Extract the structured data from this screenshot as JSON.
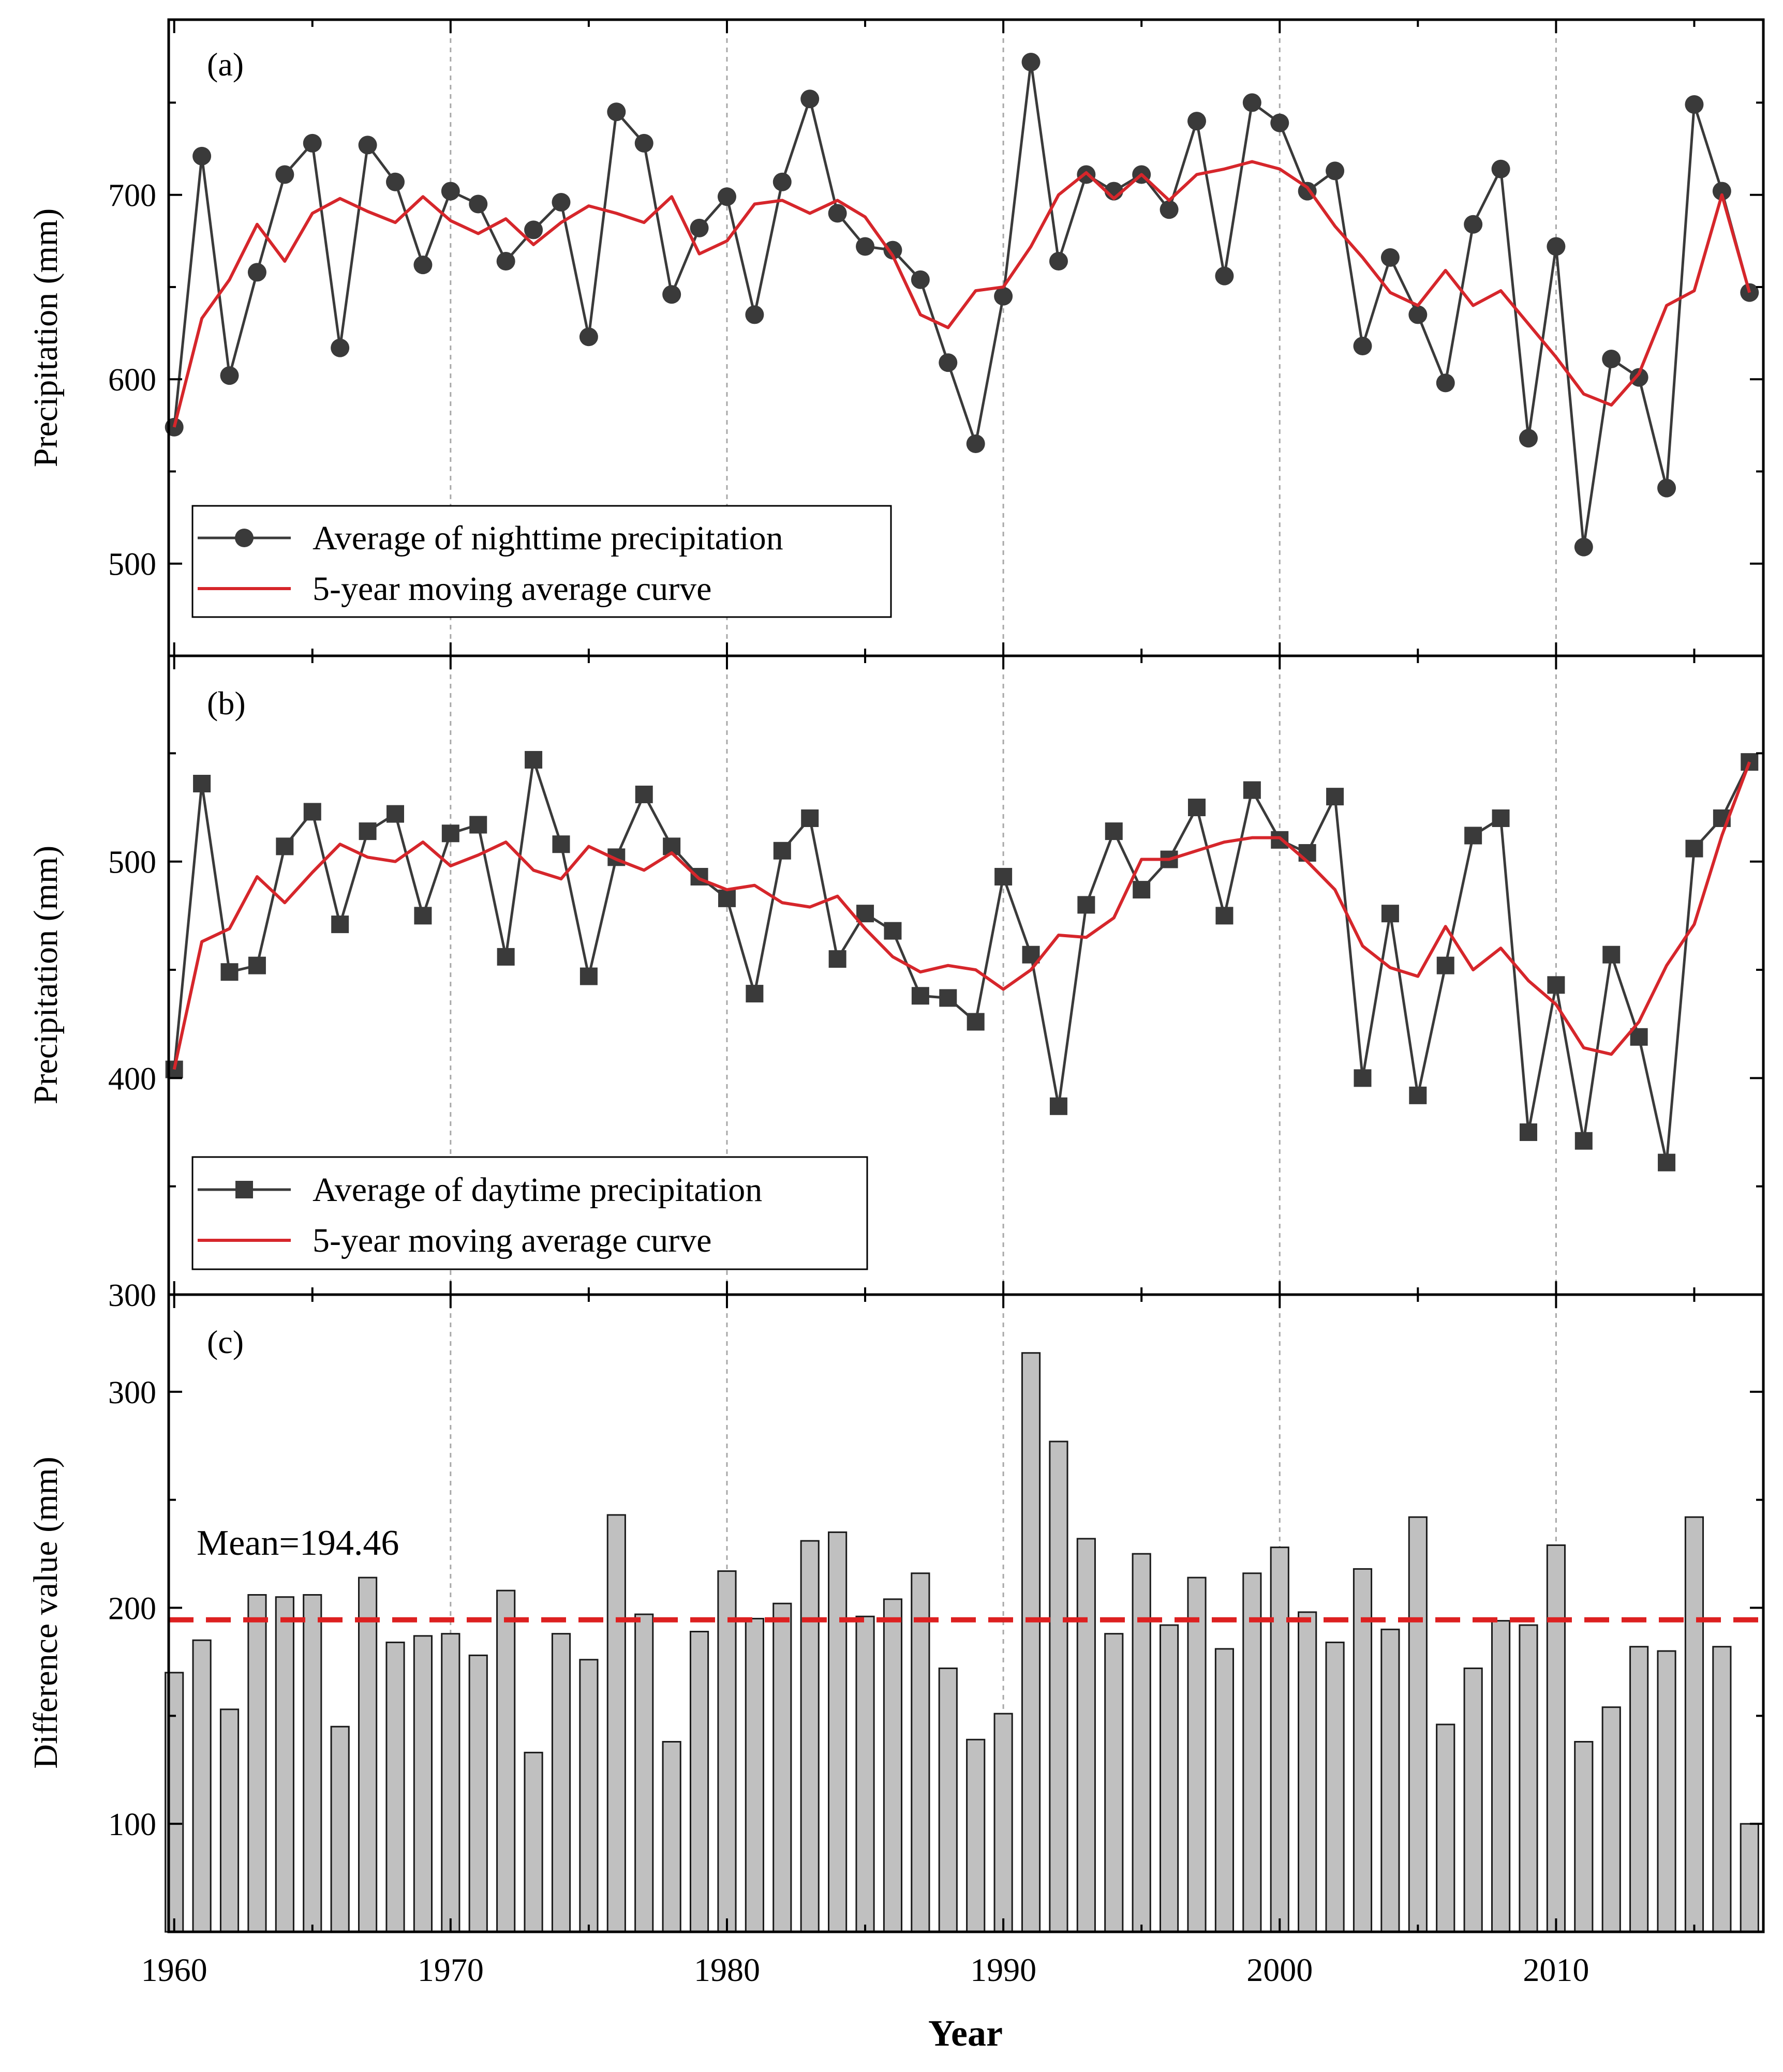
{
  "figure": {
    "xlabel": "Year",
    "x_ticks": [
      1960,
      1970,
      1980,
      1990,
      2000,
      2010
    ],
    "colors": {
      "observed": "#3a3a3a",
      "moving_average": "#d6262b",
      "bar_fill": "#c0c0c0",
      "bar_edge": "#1a1a1a",
      "grid": "#a8a8a8",
      "mean_line": "#dd2020"
    }
  },
  "chart_data": [
    {
      "panel_label": "(a)",
      "type": "line",
      "ylabel": "Precipitation (mm)",
      "xlim": [
        1959.8,
        2017.5
      ],
      "ylim": [
        450,
        795
      ],
      "y_ticks": [
        500,
        600,
        700
      ],
      "grid": "vertical dashed lines at decade ticks",
      "legend_position": "bottom-left",
      "x": [
        1960,
        1961,
        1962,
        1963,
        1964,
        1965,
        1966,
        1967,
        1968,
        1969,
        1970,
        1971,
        1972,
        1973,
        1974,
        1975,
        1976,
        1977,
        1978,
        1979,
        1980,
        1981,
        1982,
        1983,
        1984,
        1985,
        1986,
        1987,
        1988,
        1989,
        1990,
        1991,
        1992,
        1993,
        1994,
        1995,
        1996,
        1997,
        1998,
        1999,
        2000,
        2001,
        2002,
        2003,
        2004,
        2005,
        2006,
        2007,
        2008,
        2009,
        2010,
        2011,
        2012,
        2013,
        2014,
        2015,
        2016,
        2017
      ],
      "series": [
        {
          "name": "Average of nighttime precipitation",
          "marker": "circle",
          "values": [
            574,
            721,
            602,
            658,
            711,
            728,
            617,
            727,
            707,
            662,
            702,
            695,
            664,
            681,
            696,
            623,
            745,
            728,
            646,
            682,
            699,
            635,
            707,
            752,
            690,
            672,
            670,
            654,
            609,
            565,
            645,
            772,
            664,
            711,
            702,
            711,
            692,
            740,
            656,
            750,
            739,
            702,
            713,
            618,
            666,
            635,
            598,
            684,
            714,
            568,
            672,
            509,
            611,
            601,
            541,
            749,
            702,
            647
          ]
        },
        {
          "name": "5-year moving average curve",
          "marker": "none",
          "values": [
            574,
            633,
            654,
            684,
            664,
            690,
            698,
            691,
            685,
            699,
            686,
            679,
            687,
            673,
            685,
            694,
            690,
            685,
            699,
            668,
            675,
            695,
            697,
            690,
            697,
            688,
            667,
            635,
            628,
            648,
            650,
            672,
            700,
            712,
            698,
            711,
            697,
            711,
            714,
            718,
            714,
            704,
            683,
            666,
            647,
            640,
            659,
            640,
            648,
            630,
            612,
            592,
            586,
            603,
            640,
            648,
            700,
            647
          ]
        }
      ]
    },
    {
      "panel_label": "(b)",
      "type": "line",
      "ylabel": "Precipitation (mm)",
      "xlim": [
        1959.8,
        2017.5
      ],
      "ylim": [
        300,
        595
      ],
      "y_ticks": [
        300,
        400,
        500
      ],
      "grid": "vertical dashed lines at decade ticks",
      "legend_position": "bottom-left",
      "x": [
        1960,
        1961,
        1962,
        1963,
        1964,
        1965,
        1966,
        1967,
        1968,
        1969,
        1970,
        1971,
        1972,
        1973,
        1974,
        1975,
        1976,
        1977,
        1978,
        1979,
        1980,
        1981,
        1982,
        1983,
        1984,
        1985,
        1986,
        1987,
        1988,
        1989,
        1990,
        1991,
        1992,
        1993,
        1994,
        1995,
        1996,
        1997,
        1998,
        1999,
        2000,
        2001,
        2002,
        2003,
        2004,
        2005,
        2006,
        2007,
        2008,
        2009,
        2010,
        2011,
        2012,
        2013,
        2014,
        2015,
        2016,
        2017
      ],
      "series": [
        {
          "name": "Average of daytime precipitation",
          "marker": "square",
          "values": [
            404,
            536,
            449,
            452,
            507,
            523,
            471,
            514,
            522,
            475,
            513,
            517,
            456,
            547,
            508,
            447,
            502,
            531,
            507,
            493,
            483,
            439,
            505,
            520,
            455,
            476,
            468,
            438,
            437,
            426,
            493,
            457,
            387,
            480,
            514,
            487,
            501,
            525,
            475,
            533,
            510,
            504,
            530,
            400,
            476,
            392,
            452,
            512,
            520,
            375,
            443,
            371,
            457,
            419,
            361,
            506,
            520,
            546
          ]
        },
        {
          "name": "5-year moving average curve",
          "marker": "none",
          "values": [
            404,
            463,
            469,
            493,
            481,
            495,
            508,
            502,
            500,
            509,
            498,
            503,
            509,
            496,
            492,
            507,
            501,
            496,
            504,
            492,
            487,
            489,
            481,
            479,
            484,
            469,
            456,
            449,
            452,
            450,
            441,
            450,
            466,
            465,
            474,
            501,
            501,
            505,
            509,
            511,
            511,
            500,
            487,
            461,
            451,
            447,
            470,
            450,
            460,
            445,
            434,
            414,
            411,
            426,
            452,
            471,
            512,
            546
          ]
        }
      ]
    },
    {
      "panel_label": "(c)",
      "type": "bar",
      "ylabel": "Difference value (mm)",
      "xlim": [
        1959.8,
        2017.5
      ],
      "ylim": [
        50,
        345
      ],
      "y_ticks": [
        100,
        200,
        300
      ],
      "grid": "vertical dashed lines at decade ticks",
      "mean": 194.46,
      "mean_label": "Mean=194.46",
      "x": [
        1960,
        1961,
        1962,
        1963,
        1964,
        1965,
        1966,
        1967,
        1968,
        1969,
        1970,
        1971,
        1972,
        1973,
        1974,
        1975,
        1976,
        1977,
        1978,
        1979,
        1980,
        1981,
        1982,
        1983,
        1984,
        1985,
        1986,
        1987,
        1988,
        1989,
        1990,
        1991,
        1992,
        1993,
        1994,
        1995,
        1996,
        1997,
        1998,
        1999,
        2000,
        2001,
        2002,
        2003,
        2004,
        2005,
        2006,
        2007,
        2008,
        2009,
        2010,
        2011,
        2012,
        2013,
        2014,
        2015,
        2016,
        2017
      ],
      "values": [
        170,
        185,
        153,
        206,
        205,
        206,
        145,
        214,
        184,
        187,
        188,
        178,
        208,
        133,
        188,
        176,
        243,
        197,
        138,
        189,
        217,
        195,
        202,
        231,
        235,
        196,
        204,
        216,
        172,
        139,
        151,
        318,
        277,
        232,
        188,
        225,
        192,
        214,
        181,
        216,
        228,
        198,
        184,
        218,
        190,
        242,
        146,
        172,
        194,
        192,
        229,
        138,
        154,
        182,
        180,
        242,
        182,
        100
      ]
    }
  ],
  "legend_a": {
    "observed": "Average of nighttime precipitation",
    "average": "5-year moving average curve"
  },
  "legend_b": {
    "observed": "Average of daytime precipitation",
    "average": "5-year moving average curve"
  }
}
